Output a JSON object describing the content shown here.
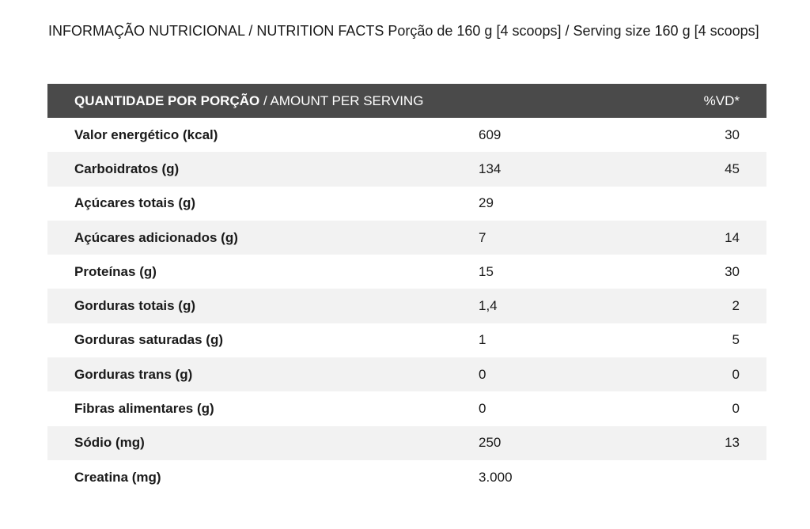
{
  "header": {
    "title_line": "INFORMAÇÃO NUTRICIONAL / NUTRITION FACTS Porção de 160 g [4 scoops] / Serving size 160 g [4 scoops]"
  },
  "table": {
    "head": {
      "name_bold": "QUANTIDADE POR PORÇÃO",
      "name_light": " / AMOUNT PER SERVING",
      "amount": "",
      "vd": "%VD*"
    },
    "header_bg": "#4a4a4a",
    "stripe_bg": "#f2f2f2",
    "rows": [
      {
        "name": "Valor energético (kcal)",
        "amount": "609",
        "vd": "30"
      },
      {
        "name": "Carboidratos (g)",
        "amount": "134",
        "vd": "45"
      },
      {
        "name": "Açúcares totais (g)",
        "amount": "29",
        "vd": ""
      },
      {
        "name": "Açúcares adicionados (g)",
        "amount": "7",
        "vd": "14"
      },
      {
        "name": "Proteínas (g)",
        "amount": "15",
        "vd": "30"
      },
      {
        "name": "Gorduras totais (g)",
        "amount": "1,4",
        "vd": "2"
      },
      {
        "name": "Gorduras saturadas (g)",
        "amount": "1",
        "vd": "5"
      },
      {
        "name": "Gorduras trans (g)",
        "amount": "0",
        "vd": "0"
      },
      {
        "name": "Fibras alimentares (g)",
        "amount": "0",
        "vd": "0"
      },
      {
        "name": "Sódio (mg)",
        "amount": "250",
        "vd": "13"
      },
      {
        "name": "Creatina (mg)",
        "amount": "3.000",
        "vd": ""
      }
    ]
  }
}
